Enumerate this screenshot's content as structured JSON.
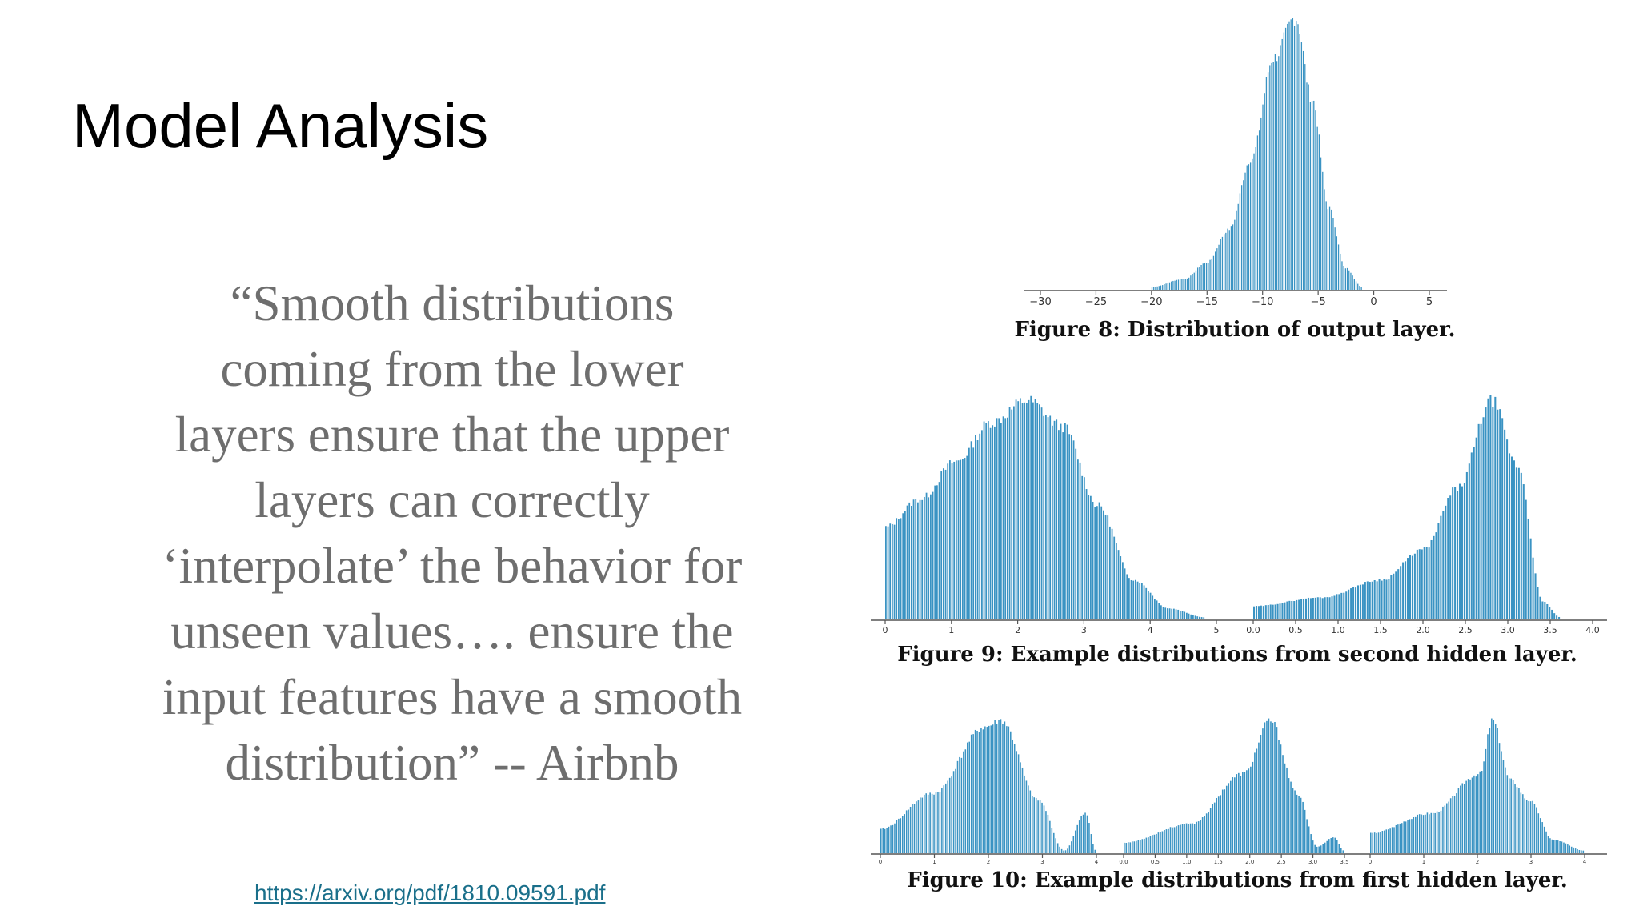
{
  "slide": {
    "title": "Model Analysis",
    "quote_lines": [
      "“Smooth distributions",
      "coming from the lower",
      "layers ensure that the upper",
      "layers can correctly",
      "‘interpolate’ the behavior for",
      "unseen values…. ensure the",
      "input features have a smooth",
      "distribution” -- Airbnb"
    ],
    "link": "https://arxiv.org/pdf/1810.09591.pdf"
  },
  "colors": {
    "bar": "#3a93c3",
    "quote": "#6e6e6e",
    "link": "#1a6f8a"
  },
  "chart_data": [
    {
      "type": "histogram",
      "caption": "Figure 8: Distribution of output layer.",
      "xticks": [
        "−30",
        "−25",
        "−20",
        "−15",
        "−10",
        "−5",
        "0",
        "5"
      ],
      "xlim": [
        -32,
        7
      ],
      "shape": [
        {
          "x": -20,
          "y": 0.01
        },
        {
          "x": -17,
          "y": 0.04
        },
        {
          "x": -15,
          "y": 0.1
        },
        {
          "x": -13,
          "y": 0.22
        },
        {
          "x": -11,
          "y": 0.48
        },
        {
          "x": -9,
          "y": 0.85
        },
        {
          "x": -7,
          "y": 1.0
        },
        {
          "x": -5.5,
          "y": 0.7
        },
        {
          "x": -4,
          "y": 0.3
        },
        {
          "x": -2.5,
          "y": 0.08
        },
        {
          "x": -1,
          "y": 0.01
        }
      ]
    },
    {
      "type": "histogram",
      "caption": "Figure 9: Example distributions from second hidden layer.",
      "panels": [
        {
          "xticks": [
            "0",
            "1",
            "2",
            "3",
            "4",
            "5"
          ],
          "xlim": [
            0,
            5
          ],
          "shape": [
            {
              "x": 0,
              "y": 0.42
            },
            {
              "x": 0.5,
              "y": 0.55
            },
            {
              "x": 1,
              "y": 0.72
            },
            {
              "x": 1.5,
              "y": 0.9
            },
            {
              "x": 2,
              "y": 1.0
            },
            {
              "x": 2.5,
              "y": 0.88
            },
            {
              "x": 3,
              "y": 0.52
            },
            {
              "x": 3.5,
              "y": 0.18
            },
            {
              "x": 4,
              "y": 0.05
            },
            {
              "x": 4.5,
              "y": 0.01
            }
          ]
        },
        {
          "xticks": [
            "0.0",
            "0.5",
            "1.0",
            "1.5",
            "2.0",
            "2.5",
            "3.0",
            "3.5",
            "4.0"
          ],
          "xlim": [
            0,
            4
          ],
          "shape": [
            {
              "x": 0,
              "y": 0.06
            },
            {
              "x": 0.8,
              "y": 0.1
            },
            {
              "x": 1.5,
              "y": 0.18
            },
            {
              "x": 2.0,
              "y": 0.32
            },
            {
              "x": 2.4,
              "y": 0.6
            },
            {
              "x": 2.8,
              "y": 1.0
            },
            {
              "x": 3.1,
              "y": 0.7
            },
            {
              "x": 3.4,
              "y": 0.08
            },
            {
              "x": 3.6,
              "y": 0.01
            }
          ]
        }
      ]
    },
    {
      "type": "histogram",
      "caption": "Figure 10: Example distributions from first hidden layer.",
      "panels": [
        {
          "xticks": [
            "0",
            "1",
            "2",
            "3",
            "4"
          ],
          "shape": [
            {
              "x": 0,
              "y": 0.18
            },
            {
              "x": 1,
              "y": 0.45
            },
            {
              "x": 2,
              "y": 0.95
            },
            {
              "x": 2.3,
              "y": 1.0
            },
            {
              "x": 3,
              "y": 0.4
            },
            {
              "x": 3.5,
              "y": 0.02
            },
            {
              "x": 3.9,
              "y": 0.3
            },
            {
              "x": 4.1,
              "y": 0.02
            }
          ]
        },
        {
          "xticks": [
            "0.0",
            "0.5",
            "1.0",
            "1.5",
            "2.0",
            "2.5",
            "3.0",
            "3.5"
          ],
          "shape": [
            {
              "x": 0,
              "y": 0.08
            },
            {
              "x": 1.0,
              "y": 0.22
            },
            {
              "x": 1.8,
              "y": 0.6
            },
            {
              "x": 2.2,
              "y": 1.0
            },
            {
              "x": 2.6,
              "y": 0.45
            },
            {
              "x": 2.9,
              "y": 0.05
            },
            {
              "x": 3.15,
              "y": 0.12
            },
            {
              "x": 3.3,
              "y": 0.02
            }
          ]
        },
        {
          "xticks": [
            "0",
            "1",
            "2",
            "3",
            "4"
          ],
          "shape": [
            {
              "x": 0,
              "y": 0.15
            },
            {
              "x": 1,
              "y": 0.3
            },
            {
              "x": 1.8,
              "y": 0.6
            },
            {
              "x": 2.0,
              "y": 1.0
            },
            {
              "x": 2.3,
              "y": 0.55
            },
            {
              "x": 2.6,
              "y": 0.4
            },
            {
              "x": 3,
              "y": 0.1
            },
            {
              "x": 3.5,
              "y": 0.02
            }
          ]
        }
      ]
    }
  ]
}
